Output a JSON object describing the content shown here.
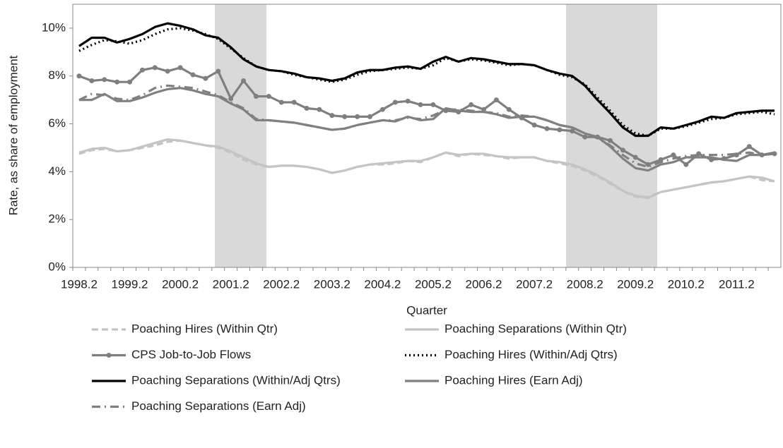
{
  "chart_data": {
    "type": "line",
    "x_label": "Quarter",
    "y_label": "Rate, as share of employment",
    "categories": [
      "1998.2",
      null,
      null,
      null,
      "1999.2",
      null,
      null,
      null,
      "2000.2",
      null,
      null,
      null,
      "2001.2",
      null,
      null,
      null,
      "2002.2",
      null,
      null,
      null,
      "2003.2",
      null,
      null,
      null,
      "2004.2",
      null,
      null,
      null,
      "2005.2",
      null,
      null,
      null,
      "2006.2",
      null,
      null,
      null,
      "2007.2",
      null,
      null,
      null,
      "2008.2",
      null,
      null,
      null,
      "2009.2",
      null,
      null,
      null,
      "2010.2",
      null,
      null,
      null,
      "2011.2",
      null,
      null,
      null
    ],
    "ylim": [
      0,
      11
    ],
    "yticks": [
      {
        "value": 0,
        "label": "0%"
      },
      {
        "value": 2,
        "label": "2%"
      },
      {
        "value": 4,
        "label": "4%"
      },
      {
        "value": 6,
        "label": "6%"
      },
      {
        "value": 8,
        "label": "8%"
      },
      {
        "value": 10,
        "label": "10%"
      }
    ],
    "series": [
      {
        "name": "Poaching Hires (Within Qtr)",
        "color": "#c4c4c4",
        "dash": "dashed",
        "marker": "none",
        "values": [
          4.75,
          4.9,
          4.95,
          4.85,
          4.9,
          5.0,
          5.1,
          5.25,
          5.3,
          5.2,
          5.1,
          5.0,
          4.8,
          4.5,
          4.3,
          4.2,
          4.25,
          4.25,
          4.2,
          4.1,
          3.95,
          4.05,
          4.2,
          4.3,
          4.3,
          4.35,
          4.45,
          4.4,
          4.6,
          4.8,
          4.65,
          4.75,
          4.7,
          4.65,
          4.55,
          4.6,
          4.6,
          4.45,
          4.35,
          4.25,
          4.05,
          3.8,
          3.5,
          3.2,
          2.95,
          2.95,
          3.15,
          3.25,
          3.35,
          3.45,
          3.55,
          3.6,
          3.7,
          3.8,
          3.65,
          3.6
        ]
      },
      {
        "name": "Poaching Separations (Within Qtr)",
        "color": "#c4c4c4",
        "dash": "solid",
        "marker": "none",
        "values": [
          4.8,
          4.95,
          5.0,
          4.85,
          4.9,
          5.05,
          5.2,
          5.35,
          5.3,
          5.2,
          5.1,
          5.05,
          4.85,
          4.6,
          4.35,
          4.2,
          4.25,
          4.25,
          4.2,
          4.1,
          3.95,
          4.05,
          4.2,
          4.3,
          4.35,
          4.4,
          4.45,
          4.45,
          4.6,
          4.8,
          4.7,
          4.75,
          4.75,
          4.65,
          4.6,
          4.6,
          4.6,
          4.45,
          4.4,
          4.3,
          4.1,
          3.85,
          3.55,
          3.2,
          3.0,
          2.9,
          3.15,
          3.25,
          3.35,
          3.45,
          3.55,
          3.6,
          3.7,
          3.8,
          3.75,
          3.6
        ]
      },
      {
        "name": "CPS Job-to-Job Flows",
        "color": "#7f7f7f",
        "dash": "solid",
        "marker": "circle",
        "values": [
          8.0,
          7.8,
          7.85,
          7.75,
          7.75,
          8.25,
          8.35,
          8.2,
          8.35,
          8.05,
          7.9,
          8.2,
          7.05,
          7.8,
          7.15,
          7.15,
          6.9,
          6.9,
          6.65,
          6.6,
          6.35,
          6.3,
          6.3,
          6.3,
          6.6,
          6.9,
          6.95,
          6.8,
          6.8,
          6.55,
          6.5,
          6.8,
          6.6,
          7.0,
          6.6,
          6.25,
          5.95,
          5.8,
          5.75,
          5.7,
          5.45,
          5.45,
          5.3,
          4.9,
          4.6,
          4.3,
          4.5,
          4.7,
          4.3,
          4.75,
          4.5,
          4.55,
          4.7,
          5.05,
          4.7,
          4.75
        ]
      },
      {
        "name": "Poaching Hires (Within/Adj Qtrs)",
        "color": "#000000",
        "dash": "dotted",
        "marker": "none",
        "values": [
          9.05,
          9.3,
          9.5,
          9.45,
          9.35,
          9.5,
          9.75,
          9.95,
          10.0,
          9.9,
          9.75,
          9.55,
          9.15,
          8.75,
          8.4,
          8.25,
          8.2,
          8.05,
          7.95,
          7.85,
          7.75,
          7.85,
          8.05,
          8.2,
          8.25,
          8.3,
          8.35,
          8.3,
          8.45,
          8.75,
          8.6,
          8.7,
          8.65,
          8.55,
          8.45,
          8.5,
          8.45,
          8.25,
          8.05,
          7.95,
          7.65,
          7.1,
          6.55,
          5.95,
          5.6,
          5.5,
          5.8,
          5.8,
          5.9,
          6.05,
          6.2,
          6.25,
          6.4,
          6.45,
          6.5,
          6.4
        ]
      },
      {
        "name": "Poaching Separations (Within/Adj Qtrs)",
        "color": "#000000",
        "dash": "solid",
        "marker": "none",
        "values": [
          9.25,
          9.6,
          9.6,
          9.4,
          9.55,
          9.75,
          10.05,
          10.2,
          10.1,
          9.95,
          9.7,
          9.6,
          9.2,
          8.7,
          8.4,
          8.25,
          8.2,
          8.1,
          7.95,
          7.9,
          7.8,
          7.9,
          8.15,
          8.25,
          8.25,
          8.35,
          8.4,
          8.3,
          8.6,
          8.8,
          8.6,
          8.75,
          8.7,
          8.6,
          8.5,
          8.5,
          8.45,
          8.25,
          8.1,
          8.0,
          7.6,
          7.0,
          6.45,
          5.85,
          5.5,
          5.5,
          5.85,
          5.8,
          5.95,
          6.1,
          6.3,
          6.25,
          6.45,
          6.5,
          6.55,
          6.55
        ]
      },
      {
        "name": "Poaching Hires (Earn Adj)",
        "color": "#808080",
        "dash": "solid",
        "marker": "none",
        "values": [
          7.0,
          7.0,
          7.25,
          6.95,
          6.95,
          7.1,
          7.3,
          7.45,
          7.5,
          7.4,
          7.25,
          7.15,
          6.85,
          6.6,
          6.15,
          6.15,
          6.1,
          6.05,
          5.95,
          5.85,
          5.75,
          5.8,
          5.95,
          6.05,
          6.15,
          6.1,
          6.3,
          6.15,
          6.2,
          6.65,
          6.55,
          6.5,
          6.5,
          6.4,
          6.25,
          6.3,
          6.3,
          6.15,
          5.95,
          5.85,
          5.6,
          5.45,
          5.05,
          4.55,
          4.15,
          4.05,
          4.3,
          4.4,
          4.6,
          4.6,
          4.6,
          4.5,
          4.45,
          4.7,
          4.7,
          4.8
        ]
      },
      {
        "name": "Poaching Separations (Earn Adj)",
        "color": "#808080",
        "dash": "dashdot",
        "marker": "none",
        "values": [
          7.0,
          7.25,
          7.2,
          7.05,
          7.0,
          7.2,
          7.5,
          7.6,
          7.55,
          7.5,
          7.35,
          7.2,
          6.9,
          6.65,
          6.2,
          6.15,
          6.1,
          6.05,
          5.95,
          5.85,
          5.75,
          5.8,
          5.95,
          6.05,
          6.15,
          6.15,
          6.25,
          6.2,
          6.35,
          6.6,
          6.6,
          6.55,
          6.5,
          6.45,
          6.3,
          6.35,
          6.3,
          6.15,
          5.95,
          5.85,
          5.6,
          5.4,
          5.1,
          4.7,
          4.35,
          4.2,
          4.4,
          4.55,
          4.65,
          4.7,
          4.7,
          4.7,
          4.75,
          4.8,
          4.7,
          4.75
        ]
      }
    ]
  }
}
